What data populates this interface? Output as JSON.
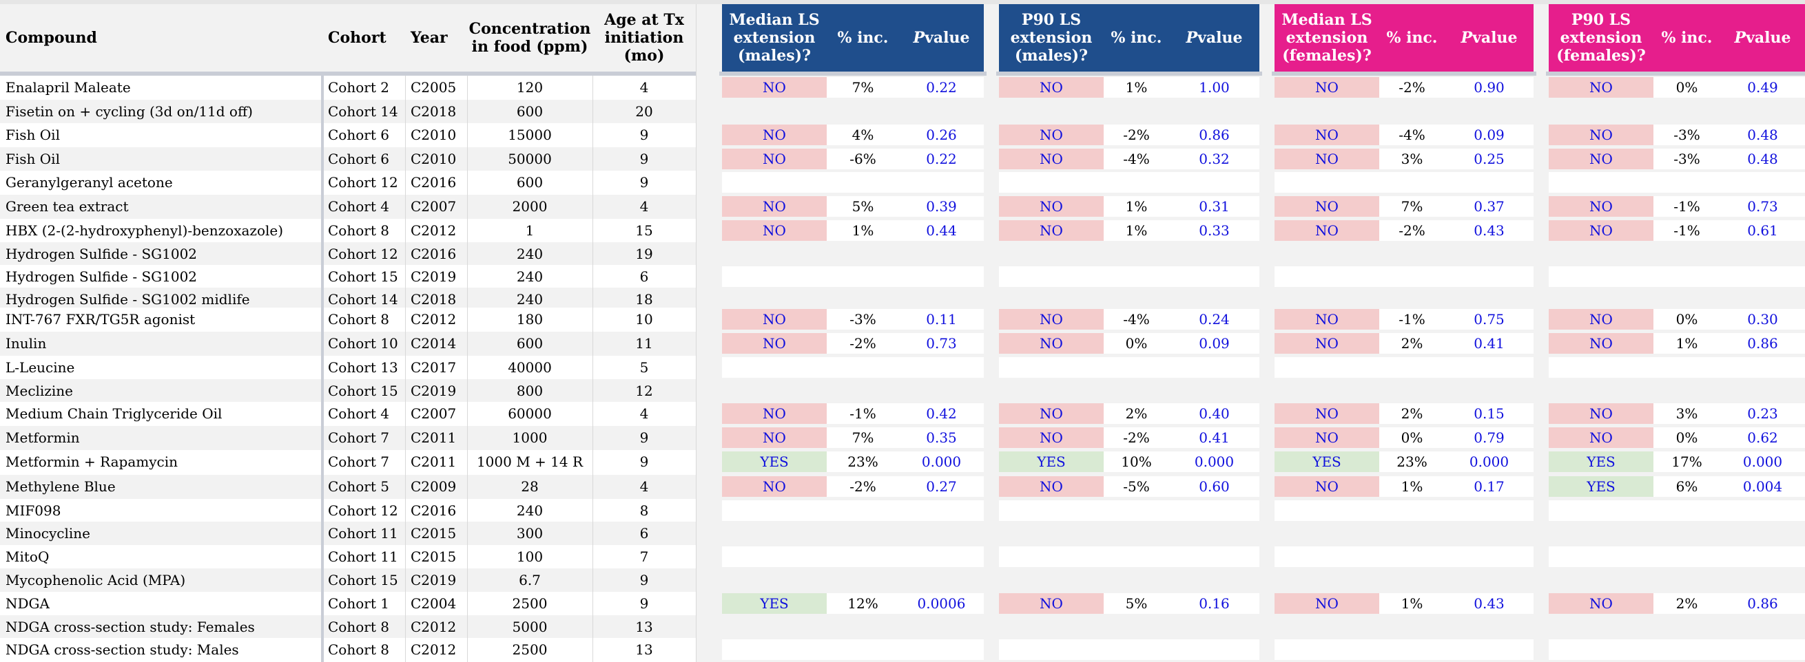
{
  "colors": {
    "male_header": "#1f4e8c",
    "female_header": "#e61e8c",
    "no_fill": "#f4cccc",
    "yes_fill": "#d9ead3",
    "pvalue_text": "#1010dd",
    "row_alt": "#f2f2f2"
  },
  "headers": {
    "compound": "Compound",
    "cohort": "Cohort",
    "year": "Year",
    "concentration": "Concentration\nin food (ppm)",
    "age": "Age at Tx\ninitiation\n(mo)",
    "median_males": "Median LS\nextension\n(males)?",
    "p90_males": "P90 LS\nextension\n(males)?",
    "median_females": "Median LS\nextension\n(females)?",
    "p90_females": "P90 LS\nextension\n(females)?",
    "pct_inc": "% inc.",
    "p_value": "P value"
  },
  "rows": [
    {
      "compound": "Enalapril Maleate",
      "cohort": "Cohort 2",
      "year": "C2005",
      "conc": "120",
      "age": "4",
      "results": [
        [
          "NO",
          "7%",
          "0.22"
        ],
        [
          "NO",
          "1%",
          "1.00"
        ],
        [
          "NO",
          "-2%",
          "0.90"
        ],
        [
          "NO",
          "0%",
          "0.49"
        ]
      ]
    },
    {
      "compound": "Fisetin on + cycling (3d on/11d off)",
      "cohort": "Cohort 14",
      "year": "C2018",
      "conc": "600",
      "age": "20",
      "results": []
    },
    {
      "compound": "Fish Oil",
      "cohort": "Cohort 6",
      "year": "C2010",
      "conc": "15000",
      "age": "9",
      "results": [
        [
          "NO",
          "4%",
          "0.26"
        ],
        [
          "NO",
          "-2%",
          "0.86"
        ],
        [
          "NO",
          "-4%",
          "0.09"
        ],
        [
          "NO",
          "-3%",
          "0.48"
        ]
      ]
    },
    {
      "compound": "Fish Oil",
      "cohort": "Cohort 6",
      "year": "C2010",
      "conc": "50000",
      "age": "9",
      "results": [
        [
          "NO",
          "-6%",
          "0.22"
        ],
        [
          "NO",
          "-4%",
          "0.32"
        ],
        [
          "NO",
          "3%",
          "0.25"
        ],
        [
          "NO",
          "-3%",
          "0.48"
        ]
      ]
    },
    {
      "compound": "Geranylgeranyl acetone",
      "cohort": "Cohort 12",
      "year": "C2016",
      "conc": "600",
      "age": "9",
      "results": []
    },
    {
      "compound": "Green tea extract",
      "cohort": "Cohort 4",
      "year": "C2007",
      "conc": "2000",
      "age": "4",
      "results": [
        [
          "NO",
          "5%",
          "0.39"
        ],
        [
          "NO",
          "1%",
          "0.31"
        ],
        [
          "NO",
          "7%",
          "0.37"
        ],
        [
          "NO",
          "-1%",
          "0.73"
        ]
      ]
    },
    {
      "compound": "HBX (2-(2-hydroxyphenyl)-benzoxazole)",
      "cohort": "Cohort 8",
      "year": "C2012",
      "conc": "1",
      "age": "15",
      "results": [
        [
          "NO",
          "1%",
          "0.44"
        ],
        [
          "NO",
          "1%",
          "0.33"
        ],
        [
          "NO",
          "-2%",
          "0.43"
        ],
        [
          "NO",
          "-1%",
          "0.61"
        ]
      ]
    },
    {
      "compound": "Hydrogen Sulfide - SG1002",
      "cohort": "Cohort 12",
      "year": "C2016",
      "conc": "240",
      "age": "19",
      "results": []
    },
    {
      "compound": "Hydrogen Sulfide - SG1002",
      "cohort": "Cohort 15",
      "year": "C2019",
      "conc": "240",
      "age": "6",
      "results": []
    },
    {
      "compound": "Hydrogen Sulfide - SG1002 midlife",
      "cohort": "Cohort 14",
      "year": "C2018",
      "conc": "240",
      "age": "18",
      "results": []
    },
    {
      "compound": "INT-767 FXR/TG5R agonist",
      "cohort": "Cohort 8",
      "year": "C2012",
      "conc": "180",
      "age": "10",
      "results": [
        [
          "NO",
          "-3%",
          "0.11"
        ],
        [
          "NO",
          "-4%",
          "0.24"
        ],
        [
          "NO",
          "-1%",
          "0.75"
        ],
        [
          "NO",
          "0%",
          "0.30"
        ]
      ]
    },
    {
      "compound": "Inulin",
      "cohort": "Cohort 10",
      "year": "C2014",
      "conc": "600",
      "age": "11",
      "results": [
        [
          "NO",
          "-2%",
          "0.73"
        ],
        [
          "NO",
          "0%",
          "0.09"
        ],
        [
          "NO",
          "2%",
          "0.41"
        ],
        [
          "NO",
          "1%",
          "0.86"
        ]
      ]
    },
    {
      "compound": "L-Leucine",
      "cohort": "Cohort 13",
      "year": "C2017",
      "conc": "40000",
      "age": "5",
      "results": []
    },
    {
      "compound": "Meclizine",
      "cohort": "Cohort 15",
      "year": "C2019",
      "conc": "800",
      "age": "12",
      "results": []
    },
    {
      "compound": "Medium Chain Triglyceride Oil",
      "cohort": "Cohort 4",
      "year": "C2007",
      "conc": "60000",
      "age": "4",
      "results": [
        [
          "NO",
          "-1%",
          "0.42"
        ],
        [
          "NO",
          "2%",
          "0.40"
        ],
        [
          "NO",
          "2%",
          "0.15"
        ],
        [
          "NO",
          "3%",
          "0.23"
        ]
      ]
    },
    {
      "compound": "Metformin",
      "cohort": "Cohort 7",
      "year": "C2011",
      "conc": "1000",
      "age": "9",
      "results": [
        [
          "NO",
          "7%",
          "0.35"
        ],
        [
          "NO",
          "-2%",
          "0.41"
        ],
        [
          "NO",
          "0%",
          "0.79"
        ],
        [
          "NO",
          "0%",
          "0.62"
        ]
      ]
    },
    {
      "compound": "Metformin + Rapamycin",
      "cohort": "Cohort 7",
      "year": "C2011",
      "conc": "1000 M + 14 R",
      "age": "9",
      "results": [
        [
          "YES",
          "23%",
          "0.000"
        ],
        [
          "YES",
          "10%",
          "0.000"
        ],
        [
          "YES",
          "23%",
          "0.000"
        ],
        [
          "YES",
          "17%",
          "0.000"
        ]
      ]
    },
    {
      "compound": "Methylene Blue",
      "cohort": "Cohort 5",
      "year": "C2009",
      "conc": "28",
      "age": "4",
      "results": [
        [
          "NO",
          "-2%",
          "0.27"
        ],
        [
          "NO",
          "-5%",
          "0.60"
        ],
        [
          "NO",
          "1%",
          "0.17"
        ],
        [
          "YES",
          "6%",
          "0.004"
        ]
      ]
    },
    {
      "compound": "MIF098",
      "cohort": "Cohort 12",
      "year": "C2016",
      "conc": "240",
      "age": "8",
      "results": []
    },
    {
      "compound": "Minocycline",
      "cohort": "Cohort 11",
      "year": "C2015",
      "conc": "300",
      "age": "6",
      "results": []
    },
    {
      "compound": "MitoQ",
      "cohort": "Cohort 11",
      "year": "C2015",
      "conc": "100",
      "age": "7",
      "results": []
    },
    {
      "compound": "Mycophenolic Acid (MPA)",
      "cohort": "Cohort 15",
      "year": "C2019",
      "conc": "6.7",
      "age": "9",
      "results": []
    },
    {
      "compound": "NDGA",
      "cohort": "Cohort 1",
      "year": "C2004",
      "conc": "2500",
      "age": "9",
      "results": [
        [
          "YES",
          "12%",
          "0.0006"
        ],
        [
          "NO",
          "5%",
          "0.16"
        ],
        [
          "NO",
          "1%",
          "0.43"
        ],
        [
          "NO",
          "2%",
          "0.86"
        ]
      ]
    },
    {
      "compound": "NDGA cross-section study: Females",
      "cohort": "Cohort 8",
      "year": "C2012",
      "conc": "5000",
      "age": "13",
      "results": []
    },
    {
      "compound": "NDGA cross-section study: Males",
      "cohort": "Cohort 8",
      "year": "C2012",
      "conc": "2500",
      "age": "13",
      "results": []
    }
  ]
}
